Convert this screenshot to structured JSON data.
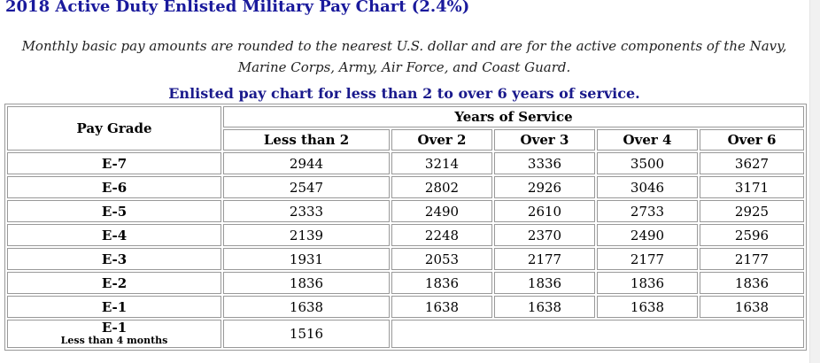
{
  "page": {
    "title": "2018 Active Duty Enlisted Military Pay Chart (2.4%)",
    "intro": "Monthly basic pay amounts are rounded to the nearest U.S. dollar and are for the active components of the Navy, Marine Corps, Army, Air Force, and Coast Guard.",
    "caption": "Enlisted pay chart for less than 2 to over 6 years of service."
  },
  "table": {
    "pay_grade_header": "Pay Grade",
    "years_header": "Years of Service",
    "columns": [
      "Less than 2",
      "Over 2",
      "Over 3",
      "Over 4",
      "Over 6"
    ],
    "rows": [
      {
        "grade": "E-7",
        "values": [
          "2944",
          "3214",
          "3336",
          "3500",
          "3627"
        ]
      },
      {
        "grade": "E-6",
        "values": [
          "2547",
          "2802",
          "2926",
          "3046",
          "3171"
        ]
      },
      {
        "grade": "E-5",
        "values": [
          "2333",
          "2490",
          "2610",
          "2733",
          "2925"
        ]
      },
      {
        "grade": "E-4",
        "values": [
          "2139",
          "2248",
          "2370",
          "2490",
          "2596"
        ]
      },
      {
        "grade": "E-3",
        "values": [
          "1931",
          "2053",
          "2177",
          "2177",
          "2177"
        ]
      },
      {
        "grade": "E-2",
        "values": [
          "1836",
          "1836",
          "1836",
          "1836",
          "1836"
        ]
      },
      {
        "grade": "E-1",
        "values": [
          "1638",
          "1638",
          "1638",
          "1638",
          "1638"
        ]
      }
    ],
    "last_row": {
      "grade": "E-1",
      "note": "Less than 4 months",
      "value": "1516"
    }
  }
}
